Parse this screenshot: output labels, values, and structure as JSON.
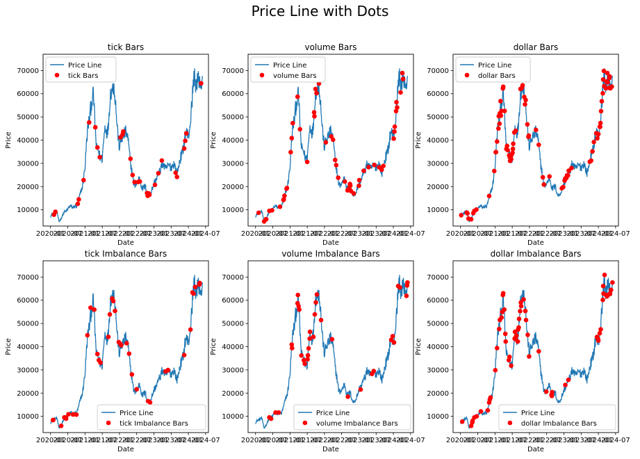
{
  "suptitle": "Price Line with Dots",
  "colors": {
    "line": "#1f77b4",
    "dots": "#ff0000"
  },
  "chart_data": [
    {
      "type": "line",
      "title": "tick Bars",
      "xlabel": "Date",
      "ylabel": "Price",
      "legend_loc": "upper-left",
      "legend": [
        "Price Line",
        "tick Bars"
      ],
      "y_ticks": [
        10000,
        20000,
        30000,
        40000,
        50000,
        60000,
        70000
      ],
      "ylim": [
        3000,
        77000
      ],
      "x_ticks": [
        "2020-01",
        "2020-07",
        "2021-01",
        "2021-07",
        "2022-01",
        "2022-07",
        "2023-01",
        "2023-07",
        "2024-01",
        "2024-07"
      ],
      "dot_density": 1.0,
      "dot_period": "all"
    },
    {
      "type": "line",
      "title": "volume Bars",
      "xlabel": "Date",
      "ylabel": "Price",
      "legend_loc": "upper-left",
      "legend": [
        "Price Line",
        "volume Bars"
      ],
      "y_ticks": [
        10000,
        20000,
        30000,
        40000,
        50000,
        60000,
        70000
      ],
      "ylim": [
        3000,
        77000
      ],
      "x_ticks": [
        "2020-01",
        "2020-07",
        "2021-01",
        "2021-07",
        "2022-01",
        "2022-07",
        "2023-01",
        "2023-07",
        "2024-01",
        "2024-07"
      ],
      "dot_density": 1.0,
      "dot_period": "all"
    },
    {
      "type": "line",
      "title": "dollar Bars",
      "xlabel": "Date",
      "ylabel": "Price",
      "legend_loc": "upper-left",
      "legend": [
        "Price Line",
        "dollar Bars"
      ],
      "y_ticks": [
        10000,
        20000,
        30000,
        40000,
        50000,
        60000,
        70000
      ],
      "ylim": [
        3000,
        77000
      ],
      "x_ticks": [
        "2020-01",
        "2020-07",
        "2021-01",
        "2021-07",
        "2022-01",
        "2022-07",
        "2023-01",
        "2023-07",
        "2024-01",
        "2024-07"
      ],
      "dot_density": 1.6,
      "dot_period": "bull"
    },
    {
      "type": "line",
      "title": "tick Imbalance Bars",
      "xlabel": "Date",
      "ylabel": "Price",
      "legend_loc": "lower-right",
      "legend": [
        "Price Line",
        "tick Imbalance Bars"
      ],
      "y_ticks": [
        10000,
        20000,
        30000,
        40000,
        50000,
        60000,
        70000
      ],
      "ylim": [
        3000,
        77000
      ],
      "x_ticks": [
        "2020-01",
        "2020-07",
        "2021-01",
        "2021-07",
        "2022-01",
        "2022-07",
        "2023-01",
        "2023-07",
        "2024-01",
        "2024-07"
      ],
      "dot_density": 1.0,
      "dot_period": "all"
    },
    {
      "type": "line",
      "title": "volume Imbalance Bars",
      "xlabel": "Date",
      "ylabel": "Price",
      "legend_loc": "lower-right",
      "legend": [
        "Price Line",
        "volume Imbalance Bars"
      ],
      "y_ticks": [
        10000,
        20000,
        30000,
        40000,
        50000,
        60000,
        70000
      ],
      "ylim": [
        3000,
        77000
      ],
      "x_ticks": [
        "2020-01",
        "2020-07",
        "2021-01",
        "2021-07",
        "2022-01",
        "2022-07",
        "2023-01",
        "2023-07",
        "2024-01",
        "2024-07"
      ],
      "dot_density": 0.8,
      "dot_period": "bull"
    },
    {
      "type": "line",
      "title": "dollar Imbalance Bars",
      "xlabel": "Date",
      "ylabel": "Price",
      "legend_loc": "lower-right",
      "legend": [
        "Price Line",
        "dollar Imbalance Bars"
      ],
      "y_ticks": [
        10000,
        20000,
        30000,
        40000,
        50000,
        60000,
        70000
      ],
      "ylim": [
        3000,
        77000
      ],
      "x_ticks": [
        "2020-01",
        "2020-07",
        "2021-01",
        "2021-07",
        "2022-01",
        "2022-07",
        "2023-01",
        "2023-07",
        "2024-01",
        "2024-07"
      ],
      "dot_density": 1.4,
      "dot_period": "bull"
    }
  ],
  "price_path": {
    "x": [
      "2020-01",
      "2020-03",
      "2020-04",
      "2020-06",
      "2020-08",
      "2020-10",
      "2020-11",
      "2020-12",
      "2021-01",
      "2021-02",
      "2021-03",
      "2021-04",
      "2021-05",
      "2021-06",
      "2021-07",
      "2021-08",
      "2021-09",
      "2021-10",
      "2021-11",
      "2021-12",
      "2022-01",
      "2022-02",
      "2022-03",
      "2022-04",
      "2022-05",
      "2022-06",
      "2022-07",
      "2022-08",
      "2022-09",
      "2022-10",
      "2022-11",
      "2022-12",
      "2023-01",
      "2023-02",
      "2023-03",
      "2023-04",
      "2023-06",
      "2023-07",
      "2023-08",
      "2023-09",
      "2023-10",
      "2023-11",
      "2023-12",
      "2024-01",
      "2024-02",
      "2024-03",
      "2024-04",
      "2024-05",
      "2024-06"
    ],
    "y": [
      7200,
      9500,
      5000,
      9200,
      11500,
      11000,
      15500,
      19000,
      29000,
      45000,
      55000,
      58000,
      37000,
      33000,
      33000,
      45000,
      45000,
      60000,
      66000,
      48000,
      38000,
      40000,
      45000,
      39000,
      30000,
      20000,
      22000,
      23000,
      19500,
      19500,
      16500,
      16800,
      22000,
      23000,
      27500,
      29000,
      28000,
      29500,
      29000,
      26500,
      30000,
      36000,
      42000,
      43000,
      50000,
      70000,
      62000,
      68000,
      62000
    ]
  }
}
